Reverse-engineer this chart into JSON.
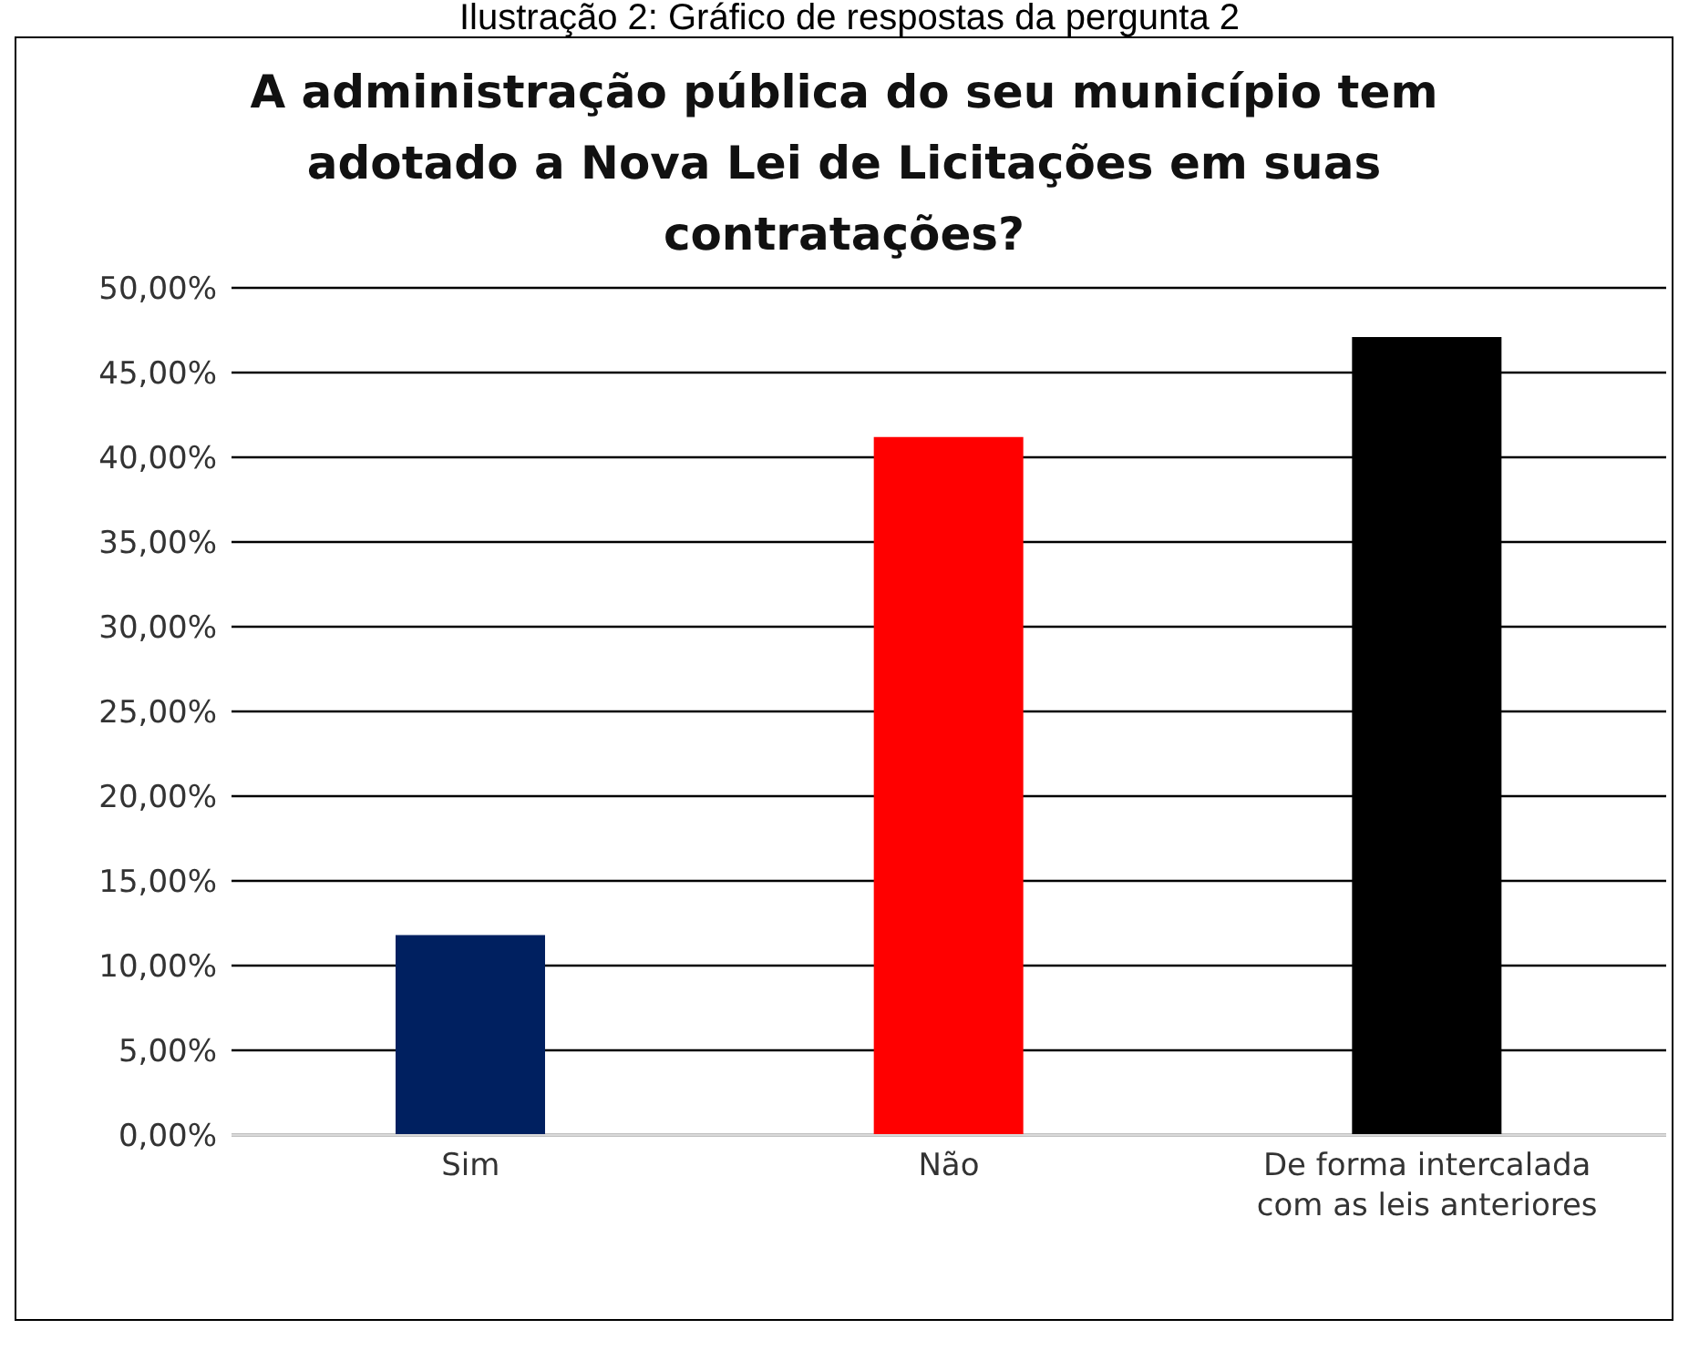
{
  "chart_data": {
    "type": "bar",
    "title": "A administração  pública do seu município tem adotado a Nova Lei de Licitações em suas contratações?",
    "annotations": [
      "Ilustração 2: Gráfico de respostas da pergunta 2"
    ],
    "categories": [
      "Sim",
      "Não",
      "De forma intercalada com as leis anteriores"
    ],
    "values": [
      11.8,
      41.2,
      47.1
    ],
    "colors": [
      "#002060",
      "#ff0000",
      "#000000"
    ],
    "ylim": [
      0,
      50
    ],
    "yticks": [
      {
        "value": 0,
        "label": "0,00%"
      },
      {
        "value": 5,
        "label": "5,00%"
      },
      {
        "value": 10,
        "label": "10,00%"
      },
      {
        "value": 15,
        "label": "15,00%"
      },
      {
        "value": 20,
        "label": "20,00%"
      },
      {
        "value": 25,
        "label": "25,00%"
      },
      {
        "value": 30,
        "label": "30,00%"
      },
      {
        "value": 35,
        "label": "35,00%"
      },
      {
        "value": 40,
        "label": "40,00%"
      },
      {
        "value": 45,
        "label": "45,00%"
      },
      {
        "value": 50,
        "label": "50,00%"
      }
    ],
    "grid": "y"
  }
}
